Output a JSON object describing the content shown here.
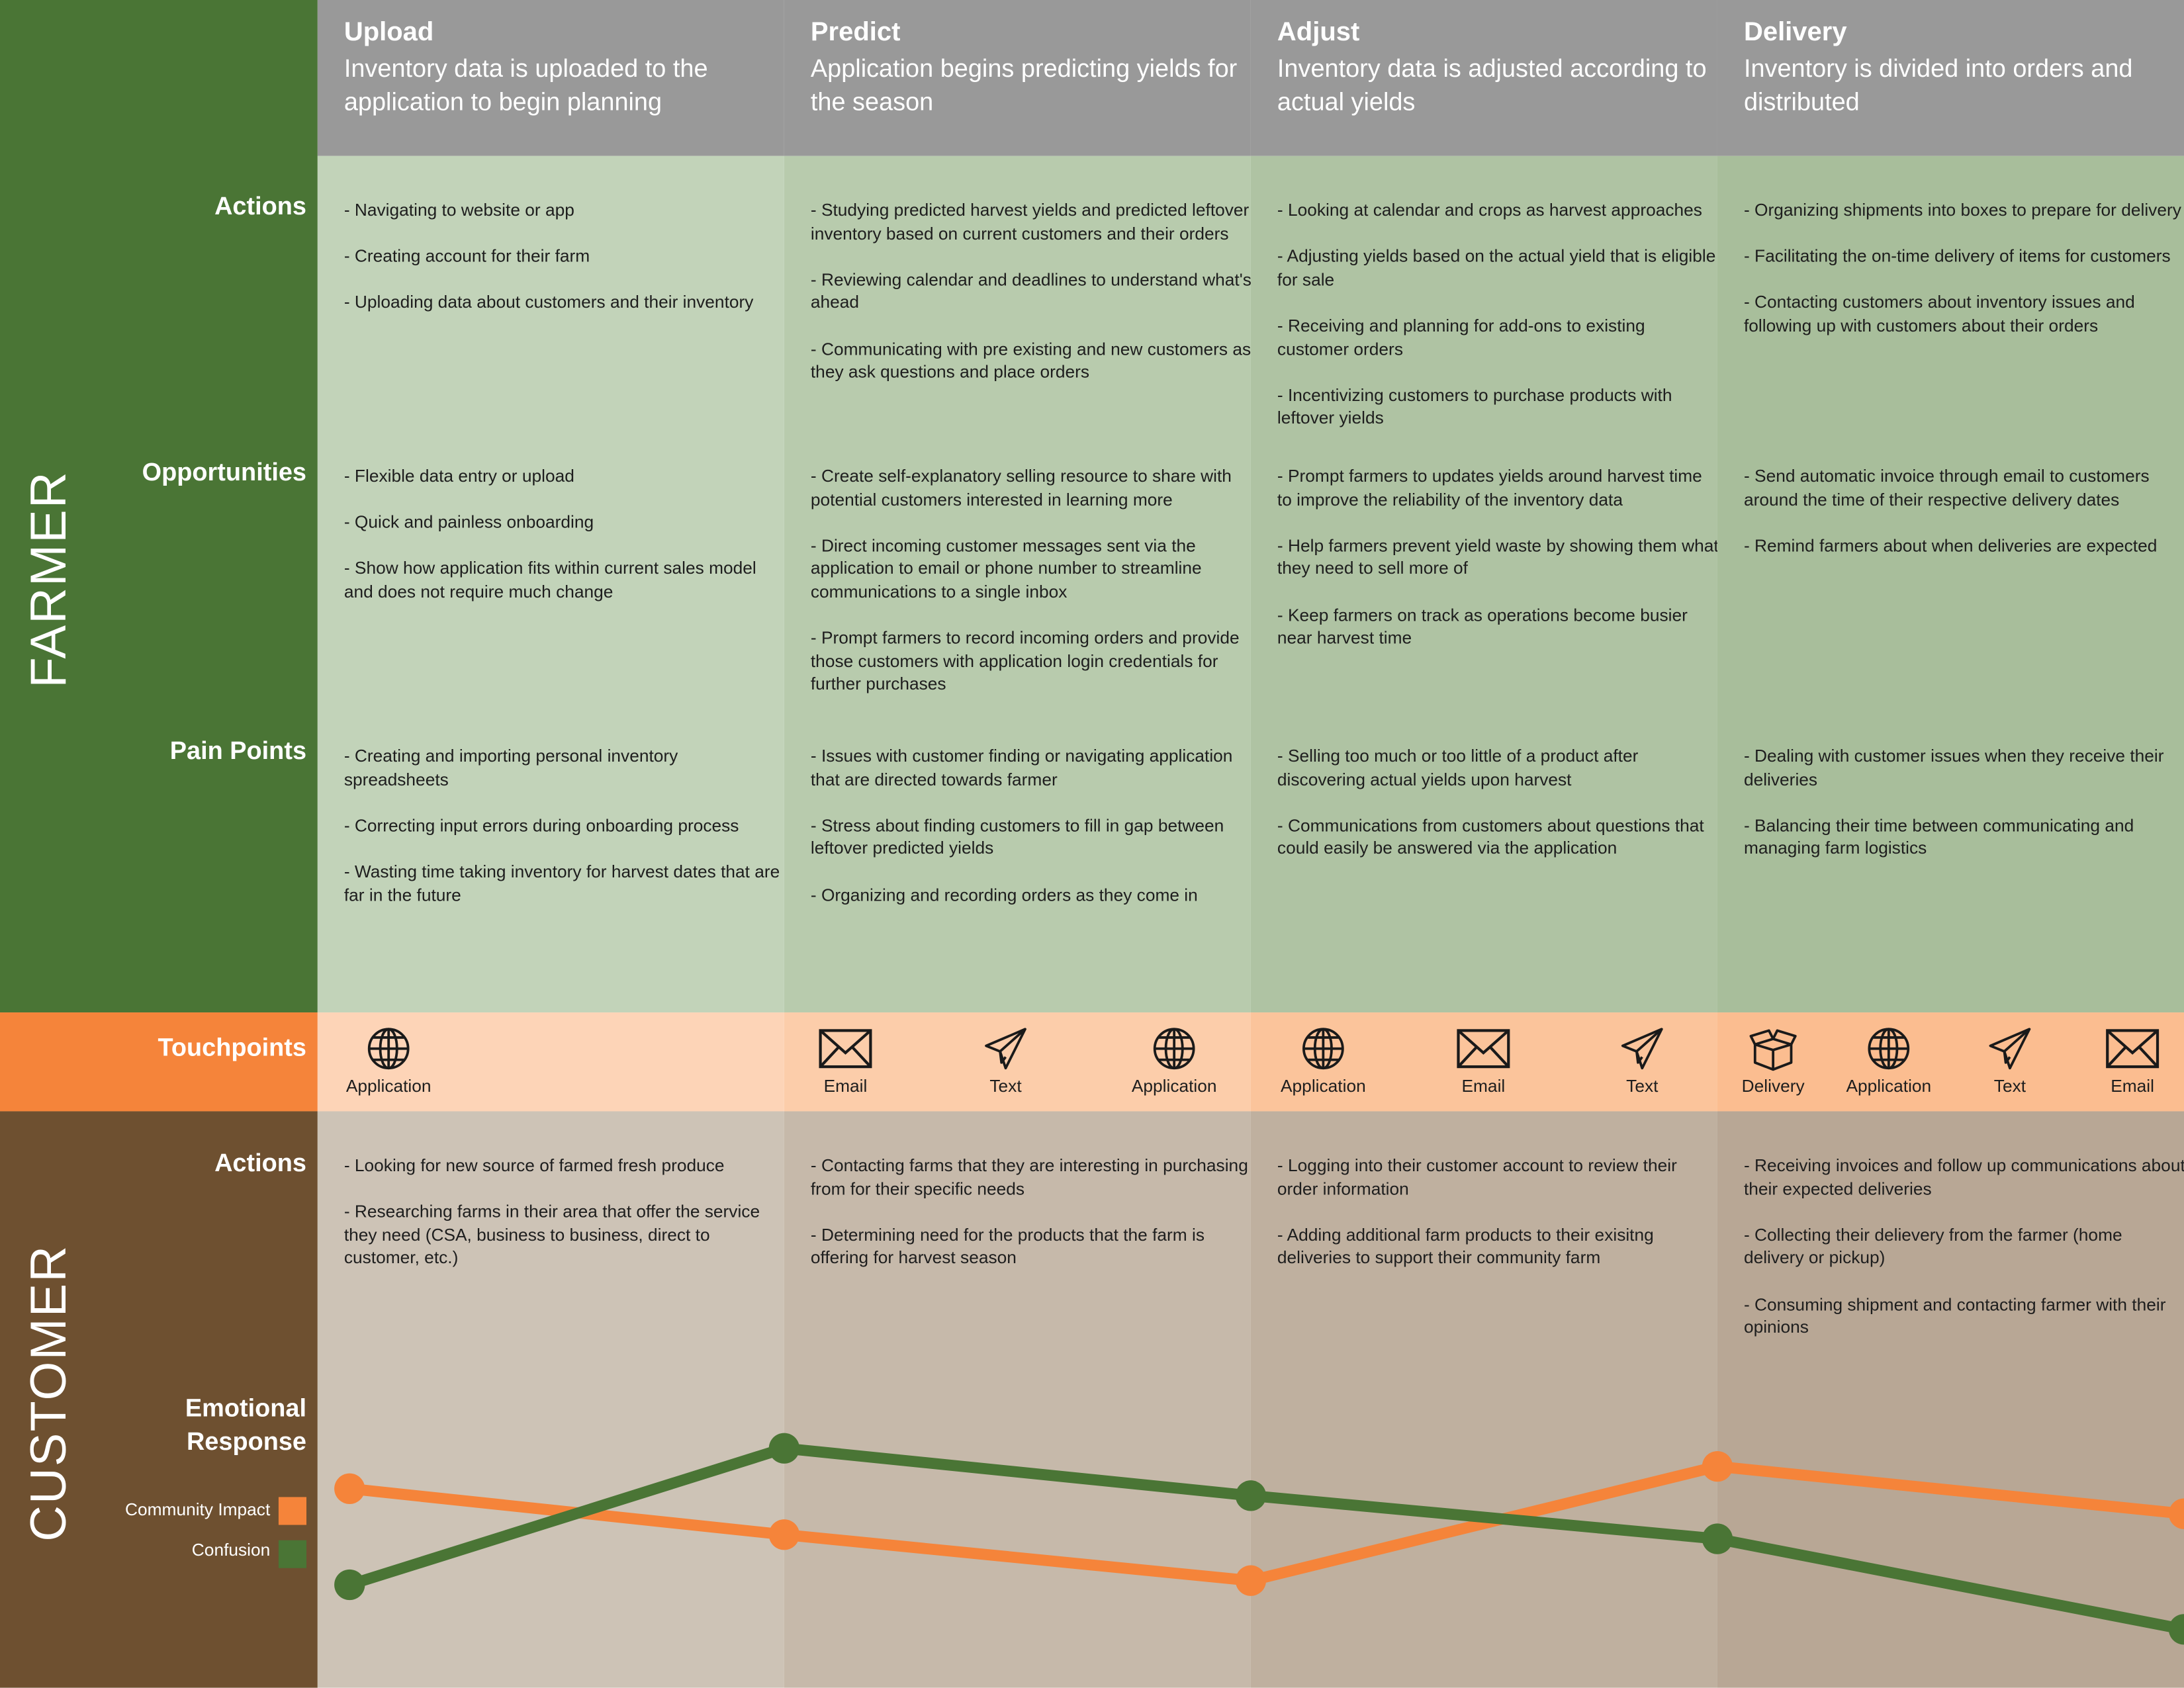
{
  "sidebar": {
    "farmer": "FARMER",
    "customer": "CUSTOMER"
  },
  "row_labels": {
    "farmer_actions": "Actions",
    "opportunities": "Opportunities",
    "pain_points": "Pain Points",
    "touchpoints": "Touchpoints",
    "customer_actions": "Actions",
    "emotional_response": "Emotional Response"
  },
  "stages": [
    {
      "title": "Upload",
      "description": "Inventory data is uploaded to the application to begin planning",
      "farmer_actions": [
        "- Navigating to website or app",
        "- Creating account for their farm",
        "- Uploading data about customers and their inventory"
      ],
      "opportunities": [
        "- Flexible data entry or upload",
        "- Quick and painless onboarding",
        "- Show how application fits within current sales model and does not require much change"
      ],
      "pain_points": [
        "- Creating and importing personal inventory spreadsheets",
        "- Correcting input errors during onboarding process",
        "- Wasting time taking inventory for harvest dates that are far in the future"
      ],
      "customer_actions": [
        "- Looking for new source of farmed fresh produce",
        "- Researching farms in their area that offer the service they need (CSA, business to business, direct to customer, etc.)"
      ]
    },
    {
      "title": "Predict",
      "description": "Application begins predicting yields for the season",
      "farmer_actions": [
        "- Studying predicted harvest yields and predicted leftover inventory based on current customers and their orders",
        "- Reviewing calendar and deadlines to understand what's ahead",
        "- Communicating with pre existing and new customers as they ask questions and place orders"
      ],
      "opportunities": [
        "- Create self-explanatory selling resource to share with potential customers interested in learning more",
        "- Direct incoming customer messages sent via the application to email or phone number to streamline communications to a single inbox",
        "- Prompt farmers to record incoming orders and provide those customers with application login credentials for further purchases"
      ],
      "pain_points": [
        "- Issues with customer finding or navigating application that are directed towards farmer",
        "- Stress about finding customers to fill in gap between leftover predicted yields",
        "- Organizing and recording orders as they come in"
      ],
      "customer_actions": [
        "- Contacting farms that they are interesting in purchasing from for their specific needs",
        "- Determining need for the products that the farm is offering for harvest season"
      ]
    },
    {
      "title": "Adjust",
      "description": "Inventory data is adjusted according to actual yields",
      "farmer_actions": [
        "- Looking at calendar and crops as harvest approaches",
        "- Adjusting yields based on the actual yield that is eligible for sale",
        "- Receiving and planning for add-ons to existing customer orders",
        "- Incentivizing customers to purchase products with leftover yields"
      ],
      "opportunities": [
        "- Prompt farmers to updates yields around harvest time to improve the reliability of the inventory data",
        "- Help farmers prevent yield waste by showing them what they need to sell more of",
        "- Keep farmers on track as operations become busier near harvest time"
      ],
      "pain_points": [
        "- Selling too much or too little of a product after discovering actual yields upon harvest",
        "- Communications from customers about questions that could easily be answered via the application"
      ],
      "customer_actions": [
        "- Logging into their customer account to review their order information",
        "- Adding additional farm products to their exisitng deliveries to support their community farm"
      ]
    },
    {
      "title": "Delivery",
      "description": "Inventory is divided into orders and distributed",
      "farmer_actions": [
        "- Organizing shipments into boxes to prepare for delivery",
        "- Facilitating the on-time delivery of items for customers",
        "- Contacting customers about inventory issues and following up with customers about their orders"
      ],
      "opportunities": [
        "- Send automatic invoice through email to customers around the time of their respective delivery dates",
        "- Remind farmers about when deliveries are expected"
      ],
      "pain_points": [
        "- Dealing with customer issues when they receive their deliveries",
        "- Balancing their time between communicating and managing farm logistics"
      ],
      "customer_actions": [
        "- Receiving invoices and follow up communications about their expected deliveries",
        "- Collecting their delievery from the farmer (home delivery or pickup)",
        "- Consuming shipment and contacting farmer with their opinions"
      ]
    }
  ],
  "touchpoints": [
    "Application",
    "Email",
    "Text",
    "Application",
    "Application",
    "Email",
    "Text",
    "Delivery",
    "Application",
    "Text",
    "Email"
  ],
  "legend": [
    "Community Impact",
    "Confusion"
  ]
}
